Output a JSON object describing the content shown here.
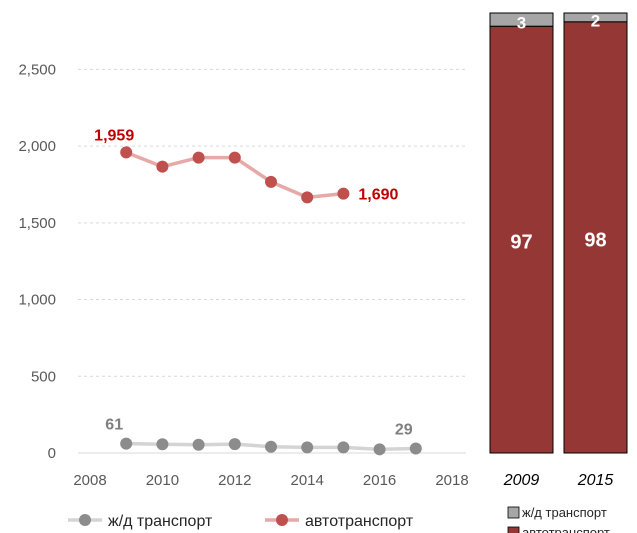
{
  "chart_data": [
    {
      "type": "line",
      "x_ticks": [
        2008,
        2010,
        2012,
        2014,
        2016,
        2018
      ],
      "y_ticks": [
        0,
        500,
        1000,
        1500,
        2000,
        2500
      ],
      "y_tick_labels": [
        "0",
        "500",
        "1,000",
        "1,500",
        "2,000",
        "2,500"
      ],
      "xlim": [
        2008,
        2018
      ],
      "ylim": [
        0,
        2750
      ],
      "grid": "horizontal-dashed",
      "legend_position": "bottom",
      "series": [
        {
          "name": "ж/д транспорт",
          "color": "#8c8c8c",
          "line_color": "#d4d4d4",
          "x": [
            2009,
            2010,
            2011,
            2012,
            2013,
            2014,
            2015,
            2016,
            2017
          ],
          "y": [
            61,
            57,
            54,
            58,
            41,
            37,
            37,
            24,
            29
          ],
          "labels": [
            {
              "x": 2009,
              "text": "61"
            },
            {
              "x": 2017,
              "text": "29"
            }
          ]
        },
        {
          "name": "автотранспорт",
          "color": "#c0504d",
          "line_color": "#e6a9a8",
          "label_color": "#c00000",
          "x": [
            2009,
            2010,
            2011,
            2012,
            2013,
            2014,
            2015
          ],
          "y": [
            1959,
            1866,
            1925,
            1925,
            1767,
            1666,
            1690
          ],
          "labels": [
            {
              "x": 2009,
              "text": "1,959"
            },
            {
              "x": 2015,
              "text": "1,690"
            }
          ]
        }
      ]
    },
    {
      "type": "bar",
      "stacked": true,
      "percent": true,
      "categories": [
        "2009",
        "2015"
      ],
      "series": [
        {
          "name": "автотранспорт",
          "color": "#953735",
          "values": [
            97,
            98
          ]
        },
        {
          "name": "ж/д транспорт",
          "color": "#a6a6a6",
          "values": [
            3,
            2
          ]
        }
      ],
      "legend_position": "bottom",
      "legend_order": [
        "ж/д транспорт",
        "автотранспорт"
      ]
    }
  ]
}
